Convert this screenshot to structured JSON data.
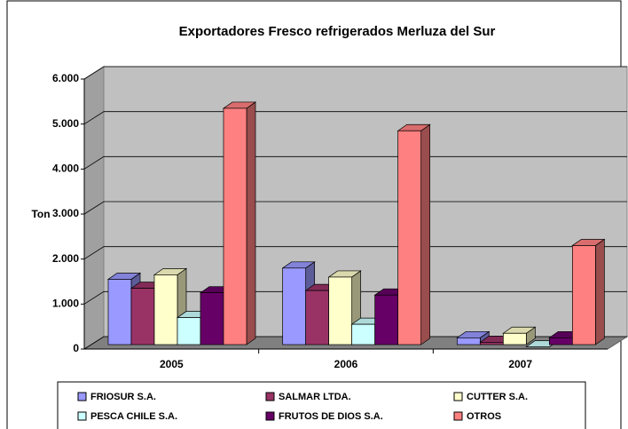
{
  "chart_data": {
    "type": "bar3d",
    "title": "Exportadores Fresco refrigerados Merluza del Sur",
    "y_label": "Ton",
    "categories": [
      "2005",
      "2006",
      "2007"
    ],
    "series": [
      {
        "name": "FRIOSUR S.A.",
        "color": "#9999ff",
        "values": [
          1550,
          1800,
          250
        ]
      },
      {
        "name": "SALMAR LTDA.",
        "color": "#993366",
        "values": [
          1350,
          1300,
          150
        ]
      },
      {
        "name": "CUTTER S.A.",
        "color": "#ffffcc",
        "values": [
          1650,
          1600,
          350
        ]
      },
      {
        "name": "PESCA CHILE S.A.",
        "color": "#ccffff",
        "values": [
          700,
          550,
          50
        ]
      },
      {
        "name": "FRUTOS DE DIOS S.A.",
        "color": "#660066",
        "values": [
          1250,
          1200,
          250
        ]
      },
      {
        "name": "OTROS",
        "color": "#ff8080",
        "values": [
          5350,
          4850,
          2300
        ]
      }
    ],
    "ylim": [
      0,
      6000
    ],
    "yticks": [
      0,
      {
        "value": 1000,
        "label": "1.000"
      },
      {
        "value": 2000,
        "label": "2.000"
      },
      {
        "value": 3000,
        "label": "3.000"
      },
      {
        "value": 4000,
        "label": "4.000"
      },
      {
        "value": 5000,
        "label": "5.000"
      },
      {
        "value": 6000,
        "label": "6.000"
      }
    ],
    "grid": true,
    "legend": "bottom"
  }
}
